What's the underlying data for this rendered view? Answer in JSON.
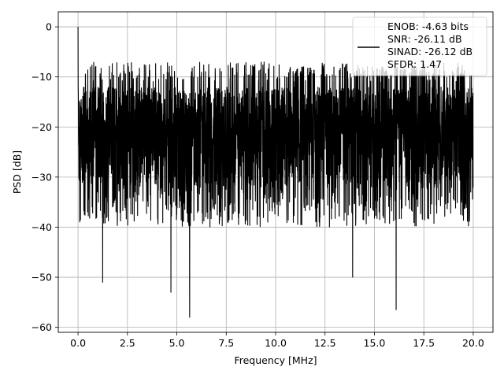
{
  "chart_data": {
    "type": "line",
    "title": "",
    "xlabel": "Frequency [MHz]",
    "ylabel": "PSD [dB]",
    "xlim": [
      -1.0,
      21.0
    ],
    "ylim": [
      -61.0,
      3.0
    ],
    "xticks": [
      0.0,
      2.5,
      5.0,
      7.5,
      10.0,
      12.5,
      15.0,
      17.5,
      20.0
    ],
    "xtick_labels": [
      "0.0",
      "2.5",
      "5.0",
      "7.5",
      "10.0",
      "12.5",
      "15.0",
      "17.5",
      "20.0"
    ],
    "yticks": [
      0,
      -10,
      -20,
      -30,
      -40,
      -50,
      -60
    ],
    "ytick_labels": [
      "0",
      "−10",
      "−20",
      "−30",
      "−40",
      "−50",
      "−60"
    ],
    "grid": true,
    "legend_position": "top-right",
    "line_color": "#000000",
    "series": [
      {
        "legend_lines": [
          "ENOB: -4.63 bits",
          "SNR: -26.11 dB",
          "SINAD: -26.12 dB",
          "SFDR: 1.47"
        ],
        "peak": {
          "x": 0.0,
          "y": 0.0
        },
        "noise_floor_range": [
          -40,
          -7
        ],
        "deep_dips": [
          {
            "x": 1.25,
            "y": -51.0
          },
          {
            "x": 4.7,
            "y": -53.0
          },
          {
            "x": 5.65,
            "y": -58.0
          },
          {
            "x": 13.9,
            "y": -50.0
          },
          {
            "x": 16.1,
            "y": -56.5
          }
        ]
      }
    ]
  }
}
